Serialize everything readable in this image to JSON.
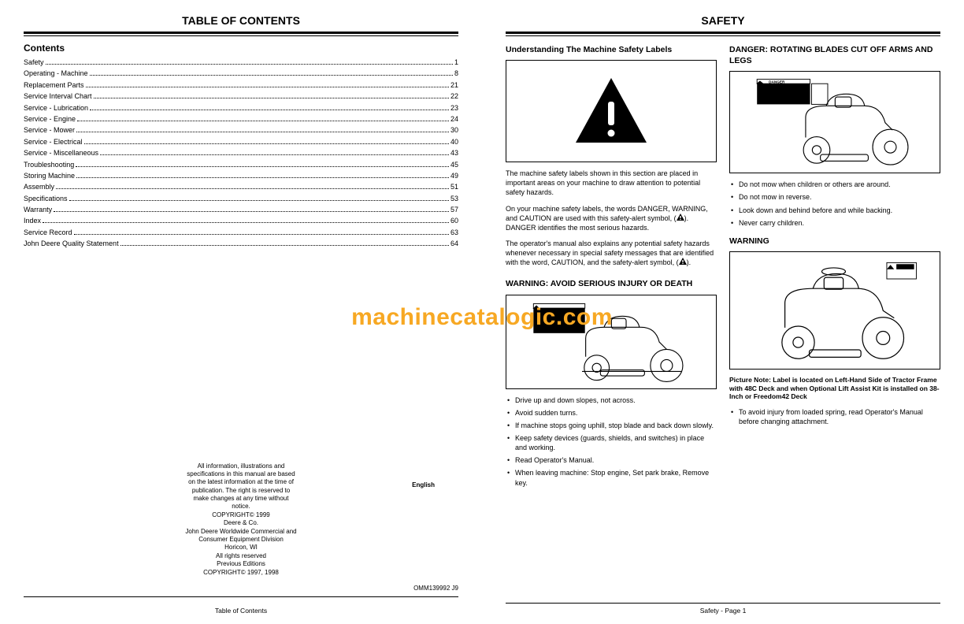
{
  "watermark": "machinecatalogic.com",
  "leftPage": {
    "title": "TABLE OF CONTENTS",
    "contentsHeading": "Contents",
    "toc": [
      {
        "label": "Safety",
        "page": "1"
      },
      {
        "label": "Operating - Machine",
        "page": "8"
      },
      {
        "label": "Replacement Parts",
        "page": "21"
      },
      {
        "label": "Service Interval Chart",
        "page": "22"
      },
      {
        "label": "Service - Lubrication",
        "page": "23"
      },
      {
        "label": "Service - Engine",
        "page": "24"
      },
      {
        "label": "Service - Mower",
        "page": "30"
      },
      {
        "label": "Service - Electrical",
        "page": "40"
      },
      {
        "label": "Service - Miscellaneous",
        "page": "43"
      },
      {
        "label": "Troubleshooting",
        "page": "45"
      },
      {
        "label": "Storing Machine",
        "page": "49"
      },
      {
        "label": "Assembly",
        "page": "51"
      },
      {
        "label": "Specifications",
        "page": "53"
      },
      {
        "label": "Warranty",
        "page": "57"
      },
      {
        "label": "Index",
        "page": "60"
      },
      {
        "label": "Service Record",
        "page": "63"
      },
      {
        "label": "John Deere Quality Statement",
        "page": "64"
      }
    ],
    "copyright": [
      "All information, illustrations and",
      "specifications in this manual are based",
      "on the latest information at the time of",
      "publication. The right is reserved to",
      "make changes at any time without",
      "notice.",
      "COPYRIGHT© 1999",
      "Deere & Co.",
      "John Deere Worldwide Commercial and",
      "Consumer Equipment Division",
      "Horicon, WI",
      "All rights reserved",
      "Previous Editions",
      "COPYRIGHT© 1997, 1998"
    ],
    "footerLang": "English",
    "footerDoc": "OMM139992 J9",
    "footerCenter": "Table of Contents"
  },
  "rightPage": {
    "title": "SAFETY",
    "col1": {
      "h1": "Understanding The Machine Safety Labels",
      "p1": "The machine safety labels shown in this section are placed in important areas on your machine to draw attention to potential safety hazards.",
      "p2_a": "On your machine safety labels, the words DANGER, WARNING, and CAUTION are used with this safety-alert symbol, (",
      "p2_b": "). DANGER identifies the most serious hazards.",
      "p3_a": "The operator's manual also explains any potential safety hazards whenever necessary in special safety messages that are identified with the word, CAUTION, and the safety-alert symbol, (",
      "p3_b": ").",
      "h2": "WARNING: AVOID SERIOUS INJURY OR DEATH",
      "bullets": [
        "Drive up and down slopes, not across.",
        "Avoid sudden turns.",
        "If machine stops going uphill, stop blade and back down slowly.",
        "Keep safety devices (guards, shields, and switches) in place and working.",
        "Read Operator's Manual.",
        "When leaving machine: Stop engine, Set park brake, Remove key."
      ]
    },
    "col2": {
      "h1": "DANGER: ROTATING BLADES CUT OFF ARMS AND LEGS",
      "bullets1": [
        "Do not mow when children or others are around.",
        "Do not mow in reverse.",
        "Look down and behind before and while backing.",
        "Never carry children."
      ],
      "h2": "WARNING",
      "pictureNote": "Picture Note: Label is located on Left-Hand Side of Tractor Frame with 48C Deck and when Optional Lift Assist Kit is installed on 38-Inch or Freedom42 Deck",
      "bullets2": [
        "To avoid injury from loaded spring, read Operator's Manual before changing attachment."
      ]
    },
    "footer": "Safety  - Page 1"
  }
}
